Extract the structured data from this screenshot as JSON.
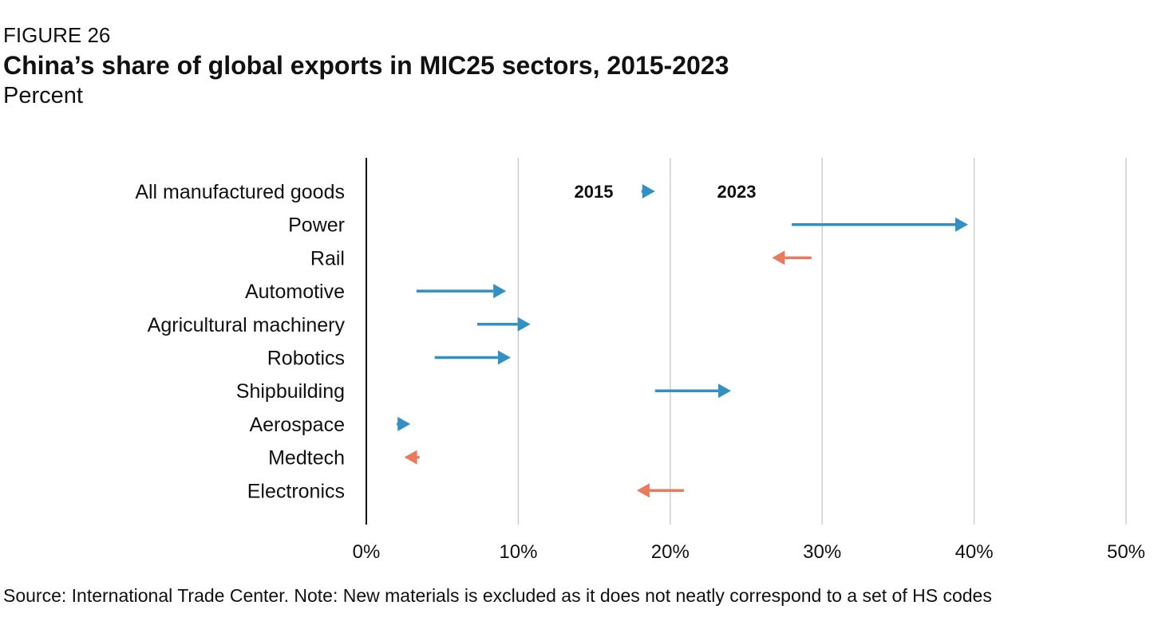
{
  "header": {
    "figure_label": "FIGURE 26",
    "title": "China’s share of global exports in MIC25 sectors, 2015-2023",
    "subtitle": "Percent"
  },
  "footer": {
    "source": "Source: International Trade Center. Note: New materials is excluded as it does not neatly correspond to a set of HS codes"
  },
  "colors": {
    "increase": "#3390c2",
    "decrease": "#e87a5d",
    "axis": "#111111",
    "grid": "#cfcfcf"
  },
  "chart_data": {
    "type": "arrow",
    "title": "China’s share of global exports in MIC25 sectors, 2015-2023",
    "subtitle": "Percent",
    "xlim": [
      0,
      50
    ],
    "x_ticks": [
      0,
      10,
      20,
      30,
      40,
      50
    ],
    "x_tick_labels": [
      "0%",
      "10%",
      "20%",
      "30%",
      "40%",
      "50%"
    ],
    "grid": "vertical",
    "annotations": [
      "2015",
      "2023"
    ],
    "categories": [
      "All manufactured goods",
      "Power",
      "Rail",
      "Automotive",
      "Agricultural machinery",
      "Robotics",
      "Shipbuilding",
      "Aerospace",
      "Medtech",
      "Electronics"
    ],
    "series": [
      {
        "name": "2015",
        "values": [
          18.1,
          28.0,
          29.3,
          3.3,
          7.3,
          4.5,
          19.0,
          2.0,
          3.5,
          20.9
        ]
      },
      {
        "name": "2023",
        "values": [
          19.0,
          39.6,
          26.7,
          9.2,
          10.8,
          9.5,
          24.0,
          2.9,
          2.5,
          17.8
        ]
      }
    ]
  }
}
